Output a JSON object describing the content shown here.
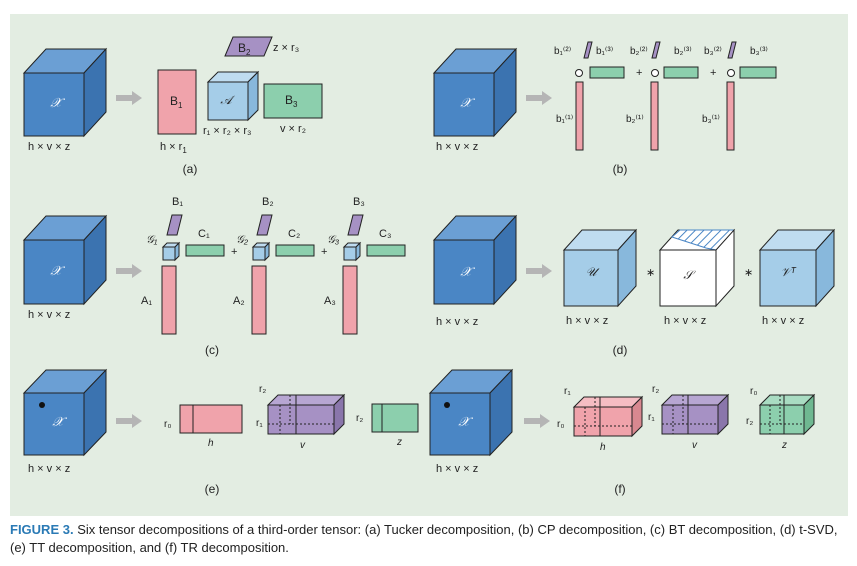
{
  "colors": {
    "panel_bg": "#e3ede2",
    "tensor": "#4a86c5",
    "core": "#a5cde8",
    "factor_pink": "#f0a3ab",
    "factor_purple": "#a691c4",
    "factor_green": "#8ccfad",
    "arrow": "#b5b5b5",
    "caption_lead": "#2a7ab5"
  },
  "panels": {
    "a": {
      "label": "(a)",
      "tensor_symbol": "𝒳",
      "tensor_dims": "h × v × z",
      "factor1_label": "B",
      "factor1_sub": "1",
      "factor1_dims": "h × r",
      "factor1_dims_sub": "1",
      "core_symbol": "𝒜",
      "core_dims": "r₁ × r₂ × r₃",
      "factor2_label": "B",
      "factor2_sub": "2",
      "factor2_dims": "z × r₃",
      "factor3_label": "B",
      "factor3_sub": "3",
      "factor3_dims": "v × r₂"
    },
    "b": {
      "label": "(b)",
      "tensor_symbol": "𝒳",
      "tensor_dims": "h × v × z",
      "plus": "+",
      "circle": "○",
      "groups": [
        {
          "top_a": "b₁⁽²⁾",
          "top_b": "b₁⁽³⁾",
          "side": "b₁⁽¹⁾"
        },
        {
          "top_a": "b₂⁽²⁾",
          "top_b": "b₂⁽³⁾",
          "side": "b₂⁽¹⁾"
        },
        {
          "top_a": "b₃⁽²⁾",
          "top_b": "b₃⁽³⁾",
          "side": "b₃⁽¹⁾"
        }
      ]
    },
    "c": {
      "label": "(c)",
      "tensor_symbol": "𝒳",
      "tensor_dims": "h × v × z",
      "plus": "+",
      "groups": [
        {
          "b_label": "B₁",
          "g_label": "𝒢₁",
          "c_label": "C₁",
          "a_label": "A₁"
        },
        {
          "b_label": "B₂",
          "g_label": "𝒢₂",
          "c_label": "C₂",
          "a_label": "A₂"
        },
        {
          "b_label": "B₃",
          "g_label": "𝒢₃",
          "c_label": "C₃",
          "a_label": "A₃"
        }
      ]
    },
    "d": {
      "label": "(d)",
      "tensor_symbol": "𝒳",
      "tensor_dims": "h × v × z",
      "star": "∗",
      "u_symbol": "𝒰",
      "u_dims": "h × v × z",
      "s_symbol": "𝒮",
      "s_dims": "h × v × z",
      "v_symbol": "𝒱ᵀ",
      "v_dims": "h × v × z"
    },
    "e": {
      "label": "(e)",
      "tensor_symbol": "𝒳",
      "tensor_dims": "h × v × z",
      "r0": "r₀",
      "h": "h",
      "r1": "r₁",
      "r2_top": "r₂",
      "v": "v",
      "r2": "r₂",
      "z": "z"
    },
    "f": {
      "label": "(f)",
      "tensor_symbol": "𝒳",
      "tensor_dims": "h × v × z",
      "r1_top": "r₁",
      "r0": "r₀",
      "h": "h",
      "r2_top": "r₂",
      "r1": "r₁",
      "v": "v",
      "r0_top": "r₀",
      "r2": "r₂",
      "z": "z"
    }
  },
  "caption": {
    "lead": "FIGURE 3.",
    "text": " Six tensor decompositions of a third-order tensor: (a) Tucker decomposition, (b) CP decomposition, (c) BT decomposition, (d) t-SVD, (e) TT decomposition, and (f) TR decomposition."
  }
}
